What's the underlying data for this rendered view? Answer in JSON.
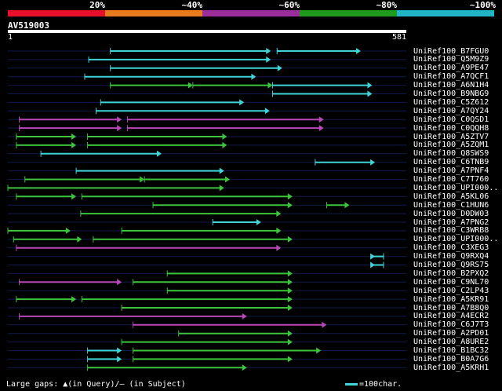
{
  "legend": {
    "labels": [
      "20%",
      "~40%",
      "~60%",
      "~80%",
      "~100%"
    ],
    "colors": [
      "#e8102a",
      "#e87b1e",
      "#9b2e9b",
      "#1f9a1f",
      "#20b6c8"
    ]
  },
  "query": {
    "name": "AV519003",
    "start": "1",
    "end": "581",
    "length": 581
  },
  "colors": {
    "cyan": "#3fd4d8",
    "green": "#3cc43c",
    "magenta": "#b847b8",
    "row_line": "#101a4a"
  },
  "hits": [
    {
      "label": "UniRef100_B7FGU0",
      "segs": [
        [
          180,
          462,
          "cyan"
        ],
        [
          473,
          620,
          "cyan"
        ]
      ]
    },
    {
      "label": "UniRef100_Q5M9Z9",
      "segs": [
        [
          142,
          462,
          "cyan"
        ]
      ]
    },
    {
      "label": "UniRef100_A9PE47",
      "segs": [
        [
          180,
          482,
          "cyan"
        ]
      ]
    },
    {
      "label": "UniRef100_A7QCF1",
      "segs": [
        [
          135,
          436,
          "cyan"
        ]
      ]
    },
    {
      "label": "UniRef100_A6N1H4",
      "segs": [
        [
          180,
          325,
          "green"
        ],
        [
          325,
          465,
          "green"
        ],
        [
          465,
          640,
          "cyan"
        ]
      ]
    },
    {
      "label": "UniRef100_B9NBG9",
      "segs": [
        [
          465,
          640,
          "cyan"
        ]
      ]
    },
    {
      "label": "UniRef100_C5Z612",
      "segs": [
        [
          163,
          415,
          "cyan"
        ]
      ]
    },
    {
      "label": "UniRef100_A7QY24",
      "segs": [
        [
          155,
          460,
          "cyan"
        ]
      ]
    },
    {
      "label": "UniRef100_C0QSD1",
      "segs": [
        [
          20,
          200,
          "magenta"
        ],
        [
          210,
          555,
          "magenta"
        ]
      ]
    },
    {
      "label": "UniRef100_C0QQH8",
      "segs": [
        [
          20,
          200,
          "magenta"
        ],
        [
          210,
          555,
          "magenta"
        ]
      ]
    },
    {
      "label": "UniRef100_A5ZTV7",
      "segs": [
        [
          15,
          120,
          "green"
        ],
        [
          140,
          385,
          "green"
        ]
      ]
    },
    {
      "label": "UniRef100_A5ZQM1",
      "segs": [
        [
          15,
          120,
          "green"
        ],
        [
          140,
          385,
          "green"
        ]
      ]
    },
    {
      "label": "UniRef100_Q8SWS9",
      "segs": [
        [
          58,
          270,
          "cyan"
        ]
      ]
    },
    {
      "label": "UniRef100_C6TNB9",
      "segs": [
        [
          540,
          645,
          "cyan"
        ]
      ]
    },
    {
      "label": "UniRef100_A7PNF4",
      "segs": [
        [
          120,
          380,
          "cyan"
        ]
      ]
    },
    {
      "label": "UniRef100_C7T760",
      "segs": [
        [
          30,
          240,
          "green"
        ],
        [
          240,
          390,
          "green"
        ]
      ]
    },
    {
      "label": "UniRef100_UPI000..",
      "segs": [
        [
          0,
          380,
          "green"
        ]
      ]
    },
    {
      "label": "UniRef100_A5KL06",
      "segs": [
        [
          15,
          120,
          "green"
        ],
        [
          130,
          500,
          "green"
        ]
      ]
    },
    {
      "label": "UniRef100_C1HUN6",
      "segs": [
        [
          255,
          500,
          "green"
        ],
        [
          560,
          600,
          "green"
        ]
      ]
    },
    {
      "label": "UniRef100_D0DW03",
      "segs": [
        [
          128,
          480,
          "green"
        ]
      ]
    },
    {
      "label": "UniRef100_A7PNG2",
      "segs": [
        [
          360,
          445,
          "cyan"
        ]
      ]
    },
    {
      "label": "UniRef100_C3WRB8",
      "segs": [
        [
          0,
          110,
          "green"
        ],
        [
          200,
          480,
          "green"
        ]
      ]
    },
    {
      "label": "UniRef100_UPI000..",
      "segs": [
        [
          10,
          130,
          "green"
        ],
        [
          150,
          500,
          "green"
        ]
      ]
    },
    {
      "label": "UniRef100_C3XEG3",
      "segs": [
        [
          15,
          480,
          "magenta"
        ]
      ]
    },
    {
      "label": "UniRef100_Q9RXQ4",
      "segs": [
        [
          660,
          645,
          "cyan"
        ]
      ]
    },
    {
      "label": "UniRef100_Q9RS75",
      "segs": [
        [
          660,
          645,
          "cyan"
        ]
      ]
    },
    {
      "label": "UniRef100_B2PXQ2",
      "segs": [
        [
          280,
          500,
          "green"
        ]
      ]
    },
    {
      "label": "UniRef100_C9NL70",
      "segs": [
        [
          20,
          200,
          "magenta"
        ],
        [
          220,
          500,
          "green"
        ]
      ]
    },
    {
      "label": "UniRef100_C2LP43",
      "segs": [
        [
          280,
          500,
          "green"
        ]
      ]
    },
    {
      "label": "UniRef100_A5KR91",
      "segs": [
        [
          15,
          120,
          "green"
        ],
        [
          130,
          500,
          "green"
        ]
      ]
    },
    {
      "label": "UniRef100_A7B8Q0",
      "segs": [
        [
          200,
          500,
          "green"
        ]
      ]
    },
    {
      "label": "UniRef100_A4ECR2",
      "segs": [
        [
          20,
          420,
          "magenta"
        ]
      ]
    },
    {
      "label": "UniRef100_C6J7T3",
      "segs": [
        [
          220,
          560,
          "magenta"
        ]
      ]
    },
    {
      "label": "UniRef100_A2PD01",
      "segs": [
        [
          300,
          500,
          "green"
        ]
      ]
    },
    {
      "label": "UniRef100_A8URE2",
      "segs": [
        [
          200,
          500,
          "green"
        ]
      ]
    },
    {
      "label": "UniRef100_B1BC32",
      "segs": [
        [
          140,
          200,
          "cyan"
        ],
        [
          220,
          550,
          "green"
        ]
      ]
    },
    {
      "label": "UniRef100_B0A7G6",
      "segs": [
        [
          140,
          200,
          "cyan"
        ],
        [
          220,
          500,
          "green"
        ]
      ]
    },
    {
      "label": "UniRef100_A5KRH1",
      "segs": [
        [
          140,
          420,
          "green"
        ]
      ]
    }
  ],
  "footer": {
    "note": "Large gaps: ▲(in Query)/– (in Subject)",
    "scale": "=100char."
  }
}
